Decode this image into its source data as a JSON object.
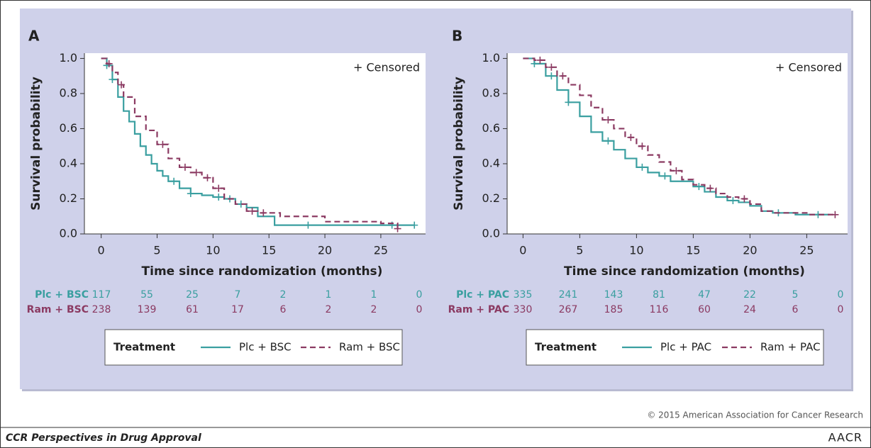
{
  "chart_data": [
    {
      "type": "step",
      "panel": "A",
      "annotation": "+ Censored",
      "xlabel": "Time since randomization (months)",
      "ylabel": "Survival probability",
      "xlim": [
        -1.5,
        29
      ],
      "ylim": [
        0,
        1.03
      ],
      "xticks": [
        0,
        5,
        10,
        15,
        20,
        25
      ],
      "yticks": [
        {
          "value": 0,
          "label": "0.0"
        },
        {
          "value": 0.2,
          "label": "0.2"
        },
        {
          "value": 0.4,
          "label": "0.4"
        },
        {
          "value": 0.6,
          "label": "0.6"
        },
        {
          "value": 0.8,
          "label": "0.8"
        },
        {
          "value": 1,
          "label": "1.0"
        }
      ],
      "legend_title": "Treatment",
      "series": [
        {
          "name": "Plc + BSC",
          "color": "#3a9fa0",
          "dashed": false,
          "x": [
            0,
            0.5,
            1,
            1.5,
            2,
            2.5,
            3,
            3.5,
            4,
            4.5,
            5,
            5.5,
            6,
            7,
            8,
            9,
            10,
            11,
            12,
            13,
            14,
            15,
            15.5,
            18,
            20,
            25,
            28
          ],
          "y": [
            1.0,
            0.96,
            0.88,
            0.78,
            0.7,
            0.64,
            0.57,
            0.5,
            0.45,
            0.4,
            0.36,
            0.33,
            0.3,
            0.26,
            0.23,
            0.22,
            0.21,
            0.2,
            0.17,
            0.15,
            0.1,
            0.1,
            0.05,
            0.05,
            0.05,
            0.05,
            0.05
          ],
          "censored_x": [
            0.5,
            1,
            6.5,
            8,
            10.5,
            11.5,
            12.5,
            18.5,
            26,
            28
          ],
          "censored_y": [
            0.96,
            0.88,
            0.3,
            0.23,
            0.21,
            0.2,
            0.17,
            0.05,
            0.05,
            0.05
          ]
        },
        {
          "name": "Ram + BSC",
          "color": "#8b3a62",
          "dashed": true,
          "x": [
            0,
            0.5,
            1,
            1.5,
            2,
            3,
            4,
            5,
            6,
            7,
            8,
            9,
            10,
            11,
            12,
            13,
            14,
            16,
            20,
            25,
            26.5
          ],
          "y": [
            1.0,
            0.97,
            0.92,
            0.85,
            0.78,
            0.67,
            0.59,
            0.51,
            0.43,
            0.38,
            0.35,
            0.32,
            0.26,
            0.2,
            0.17,
            0.13,
            0.12,
            0.1,
            0.07,
            0.06,
            0.03
          ],
          "censored_x": [
            0.7,
            1.8,
            5.5,
            7.5,
            8.5,
            9.5,
            10.5,
            13.5,
            14.5,
            26.5
          ],
          "censored_y": [
            0.97,
            0.85,
            0.51,
            0.38,
            0.35,
            0.32,
            0.26,
            0.13,
            0.12,
            0.03
          ]
        }
      ],
      "risk_table": [
        {
          "label": "Plc + BSC",
          "values": [
            117,
            55,
            25,
            7,
            2,
            1,
            1,
            0
          ]
        },
        {
          "label": "Ram + BSC",
          "values": [
            238,
            139,
            61,
            17,
            6,
            2,
            2,
            0
          ]
        }
      ]
    },
    {
      "type": "step",
      "panel": "B",
      "annotation": "+ Censored",
      "xlabel": "Time since randomization (months)",
      "ylabel": "Survival probability",
      "xlim": [
        -1.4,
        28.6
      ],
      "ylim": [
        0,
        1.03
      ],
      "xticks": [
        0,
        5,
        10,
        15,
        20,
        25
      ],
      "yticks": [
        {
          "value": 0,
          "label": "0.0"
        },
        {
          "value": 0.2,
          "label": "0.2"
        },
        {
          "value": 0.4,
          "label": "0.4"
        },
        {
          "value": 0.6,
          "label": "0.6"
        },
        {
          "value": 0.8,
          "label": "0.8"
        },
        {
          "value": 1,
          "label": "1.0"
        }
      ],
      "legend_title": "Treatment",
      "series": [
        {
          "name": "Plc + PAC",
          "color": "#3a9fa0",
          "dashed": false,
          "x": [
            0,
            1,
            2,
            3,
            4,
            5,
            6,
            7,
            8,
            9,
            10,
            11,
            12,
            13,
            14,
            15,
            16,
            17,
            18,
            19,
            20,
            21,
            22,
            24,
            27
          ],
          "y": [
            1.0,
            0.97,
            0.9,
            0.82,
            0.75,
            0.67,
            0.58,
            0.53,
            0.48,
            0.43,
            0.38,
            0.35,
            0.33,
            0.3,
            0.3,
            0.27,
            0.24,
            0.21,
            0.19,
            0.18,
            0.16,
            0.13,
            0.12,
            0.11,
            0.11
          ],
          "censored_x": [
            1,
            2.5,
            4,
            7.5,
            10.5,
            12.5,
            15.5,
            18.5,
            22.5,
            26
          ],
          "censored_y": [
            0.97,
            0.9,
            0.75,
            0.53,
            0.38,
            0.33,
            0.27,
            0.19,
            0.12,
            0.11
          ]
        },
        {
          "name": "Ram + PAC",
          "color": "#8b3a62",
          "dashed": true,
          "x": [
            0,
            1,
            2,
            3,
            4,
            5,
            6,
            7,
            8,
            9,
            10,
            11,
            12,
            13,
            14,
            15,
            16,
            17,
            18,
            19,
            20,
            21,
            22,
            25,
            27.5
          ],
          "y": [
            1.0,
            0.99,
            0.95,
            0.9,
            0.85,
            0.79,
            0.72,
            0.65,
            0.6,
            0.55,
            0.5,
            0.45,
            0.41,
            0.36,
            0.31,
            0.28,
            0.26,
            0.23,
            0.21,
            0.2,
            0.17,
            0.13,
            0.12,
            0.11,
            0.11
          ],
          "censored_x": [
            1.5,
            2.5,
            3.5,
            7.5,
            9.5,
            10.5,
            13.5,
            16.5,
            19.5,
            27.5
          ],
          "censored_y": [
            0.99,
            0.95,
            0.9,
            0.65,
            0.55,
            0.5,
            0.36,
            0.26,
            0.2,
            0.11
          ]
        }
      ],
      "risk_table": [
        {
          "label": "Plc + PAC",
          "values": [
            335,
            241,
            143,
            81,
            47,
            22,
            5,
            0
          ]
        },
        {
          "label": "Ram + PAC",
          "values": [
            330,
            267,
            185,
            116,
            60,
            24,
            6,
            0
          ]
        }
      ]
    }
  ],
  "footer": {
    "copyright": "© 2015 American Association for Cancer Research",
    "journal": "CCR Perspectives in Drug Approval",
    "logo": "AACR"
  }
}
